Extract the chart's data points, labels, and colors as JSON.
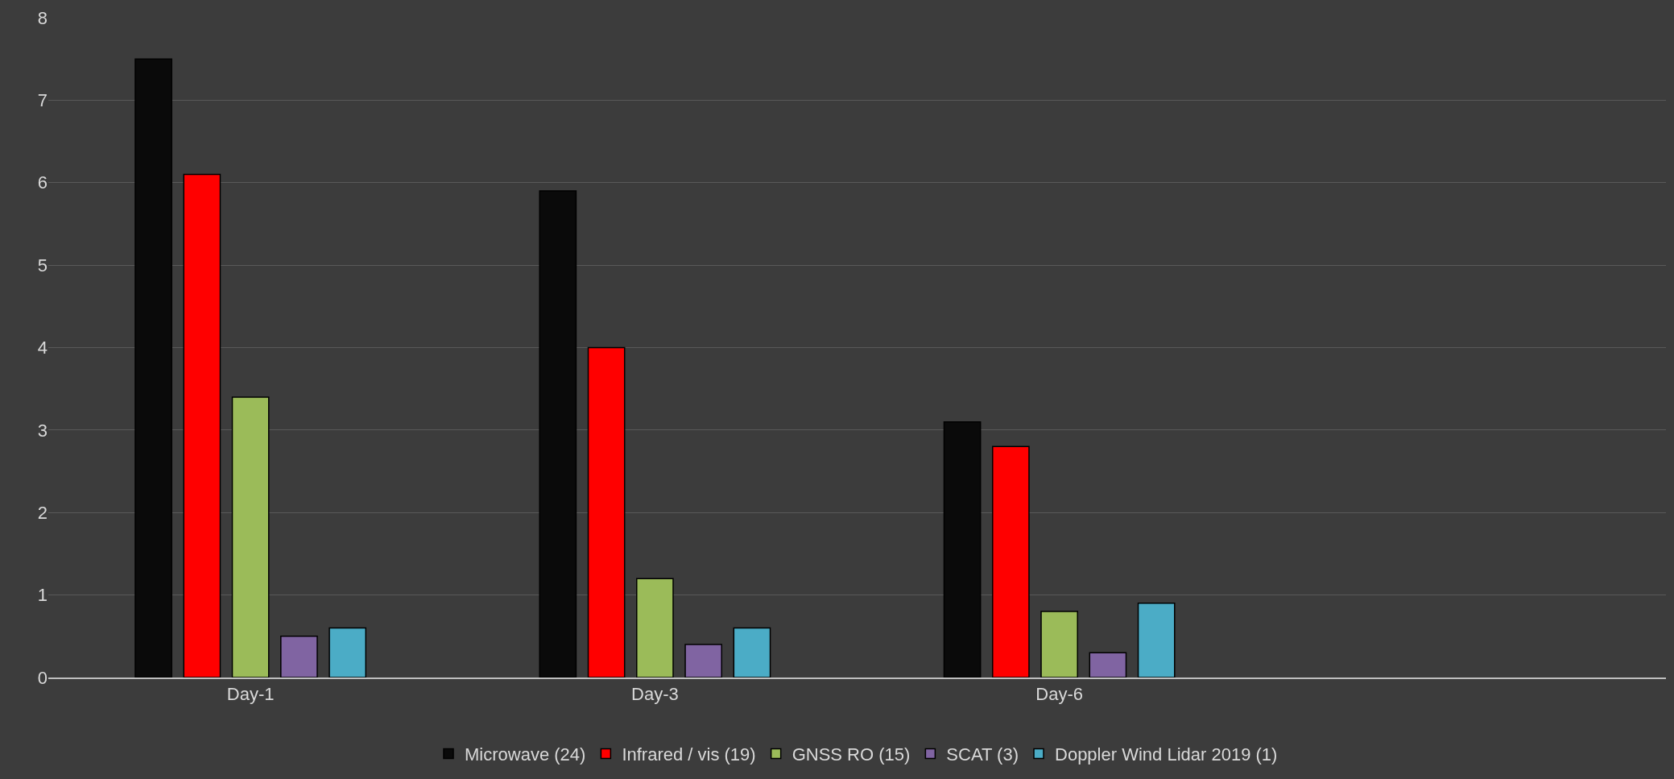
{
  "chart_data": {
    "type": "bar",
    "categories": [
      "Day-1",
      "Day-3",
      "Day-6",
      null
    ],
    "series": [
      {
        "name": "Microwave (24)",
        "color": "#0a0a0a",
        "values": [
          7.5,
          5.9,
          3.1,
          null
        ]
      },
      {
        "name": "Infrared / vis (19)",
        "color": "#ff0000",
        "values": [
          6.1,
          4.0,
          2.8,
          null
        ]
      },
      {
        "name": "GNSS RO (15)",
        "color": "#9bbb59",
        "values": [
          3.4,
          1.2,
          0.8,
          null
        ]
      },
      {
        "name": "SCAT (3)",
        "color": "#8064a2",
        "values": [
          0.5,
          0.4,
          0.3,
          null
        ]
      },
      {
        "name": "Doppler Wind Lidar 2019 (1)",
        "color": "#4bacc6",
        "values": [
          0.6,
          0.6,
          0.9,
          null
        ]
      }
    ],
    "ylim": [
      0,
      8
    ],
    "yticks": [
      0,
      1,
      2,
      3,
      4,
      5,
      6,
      7,
      8
    ],
    "grid": "y",
    "legend": "bottom"
  }
}
